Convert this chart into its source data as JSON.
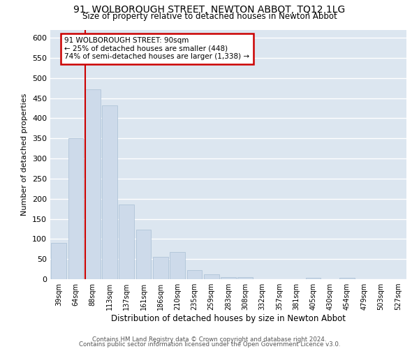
{
  "title": "91, WOLBOROUGH STREET, NEWTON ABBOT, TQ12 1LG",
  "subtitle": "Size of property relative to detached houses in Newton Abbot",
  "xlabel": "Distribution of detached houses by size in Newton Abbot",
  "ylabel": "Number of detached properties",
  "bar_color": "#cddaea",
  "bar_edge_color": "#b0c4d8",
  "background_color": "#dce6f0",
  "grid_color": "#ffffff",
  "annotation_box_color": "#cc0000",
  "vline_color": "#cc0000",
  "vline_x_index": 2,
  "annotation_title": "91 WOLBOROUGH STREET: 90sqm",
  "annotation_line1": "← 25% of detached houses are smaller (448)",
  "annotation_line2": "74% of semi-detached houses are larger (1,338) →",
  "categories": [
    "39sqm",
    "64sqm",
    "88sqm",
    "113sqm",
    "137sqm",
    "161sqm",
    "186sqm",
    "210sqm",
    "235sqm",
    "259sqm",
    "283sqm",
    "308sqm",
    "332sqm",
    "357sqm",
    "381sqm",
    "405sqm",
    "430sqm",
    "454sqm",
    "479sqm",
    "503sqm",
    "527sqm"
  ],
  "values": [
    90,
    350,
    472,
    432,
    185,
    124,
    56,
    68,
    22,
    12,
    6,
    5,
    0,
    0,
    0,
    4,
    0,
    4,
    0,
    0,
    0
  ],
  "ylim": [
    0,
    620
  ],
  "yticks": [
    0,
    50,
    100,
    150,
    200,
    250,
    300,
    350,
    400,
    450,
    500,
    550,
    600
  ],
  "footer_line1": "Contains HM Land Registry data © Crown copyright and database right 2024.",
  "footer_line2": "Contains public sector information licensed under the Open Government Licence v3.0."
}
